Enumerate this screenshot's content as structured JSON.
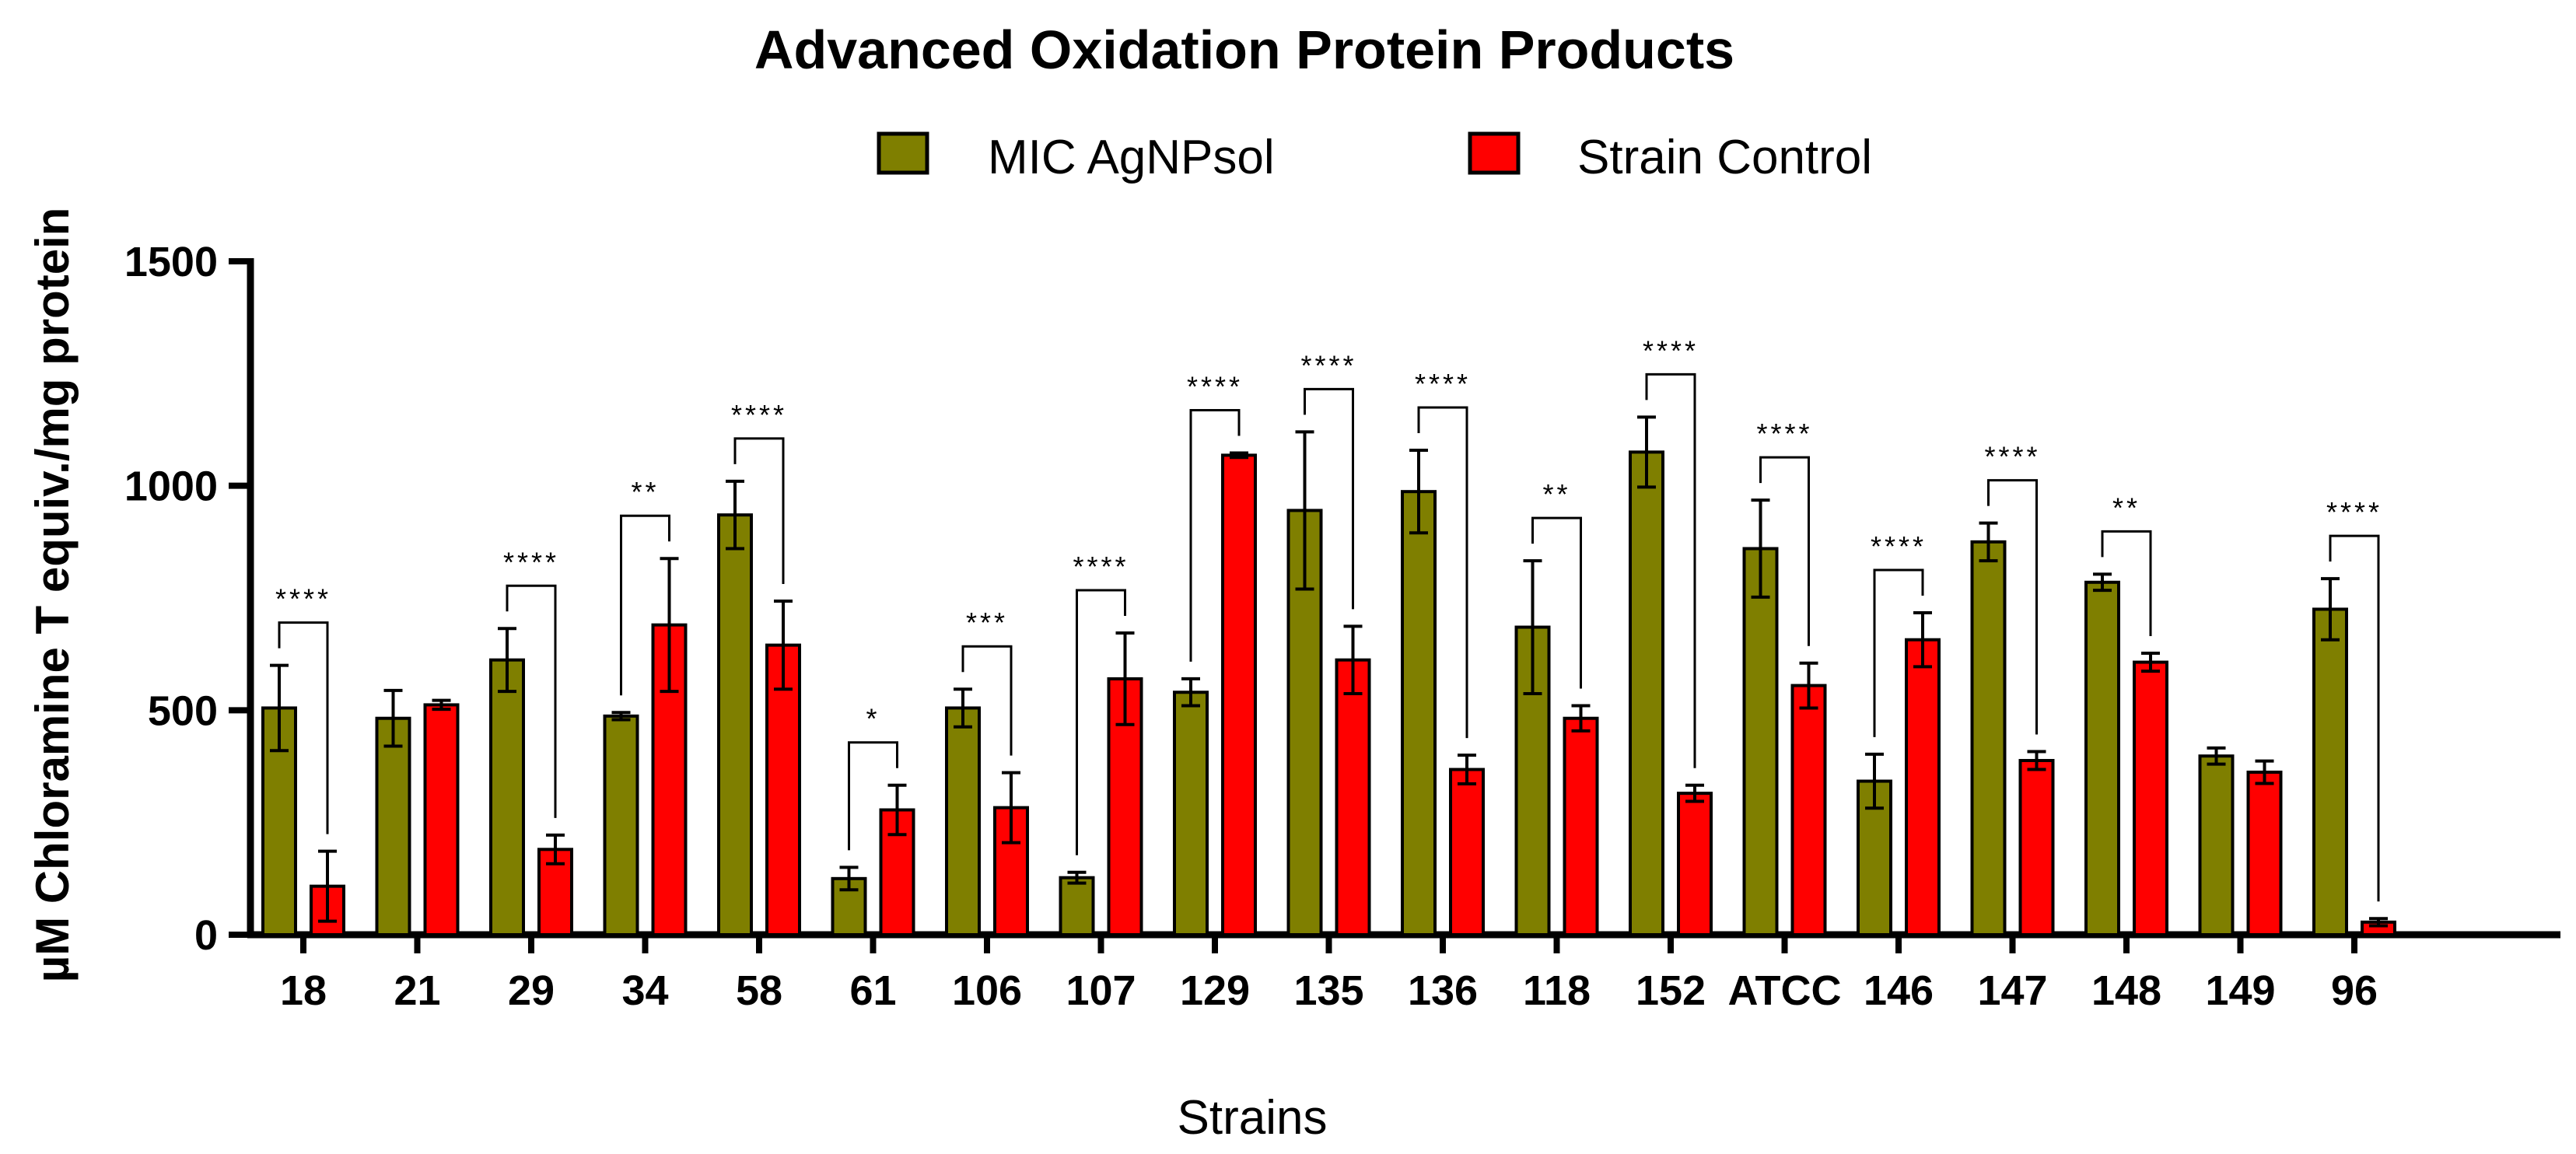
{
  "chart_data": {
    "type": "bar",
    "title": "Advanced Oxidation Protein Products",
    "xlabel": "Strains",
    "ylabel": "µM Chloramine T equiv./mg protein",
    "ylim": [
      0,
      1500
    ],
    "yticks": [
      0,
      500,
      1000,
      1500
    ],
    "legend_position": "top-center",
    "categories": [
      "18",
      "21",
      "29",
      "34",
      "58",
      "61",
      "106",
      "107",
      "129",
      "135",
      "136",
      "118",
      "152",
      "ATCC",
      "146",
      "147",
      "148",
      "149",
      "96"
    ],
    "series": [
      {
        "name": "MIC AgNPsol",
        "color": "#7f7f00",
        "values": [
          505,
          482,
          612,
          487,
          935,
          125,
          505,
          127,
          540,
          945,
          987,
          685,
          1075,
          860,
          342,
          875,
          785,
          398,
          725
        ],
        "errors": [
          95,
          62,
          70,
          8,
          75,
          25,
          42,
          12,
          30,
          175,
          92,
          148,
          78,
          108,
          60,
          42,
          18,
          18,
          68
        ]
      },
      {
        "name": "Strain Control",
        "color": "#ff0000",
        "values": [
          108,
          512,
          190,
          690,
          645,
          278,
          283,
          570,
          1068,
          612,
          368,
          482,
          315,
          555,
          657,
          388,
          607,
          362,
          28
        ],
        "errors": [
          78,
          10,
          32,
          148,
          98,
          55,
          78,
          102,
          5,
          75,
          32,
          28,
          18,
          50,
          60,
          20,
          20,
          25,
          8
        ]
      }
    ],
    "significance": [
      "****",
      "",
      "****",
      "**",
      "****",
      "*",
      "***",
      "****",
      "****",
      "****",
      "****",
      "**",
      "****",
      "****",
      "****",
      "****",
      "**",
      "",
      "****"
    ]
  }
}
